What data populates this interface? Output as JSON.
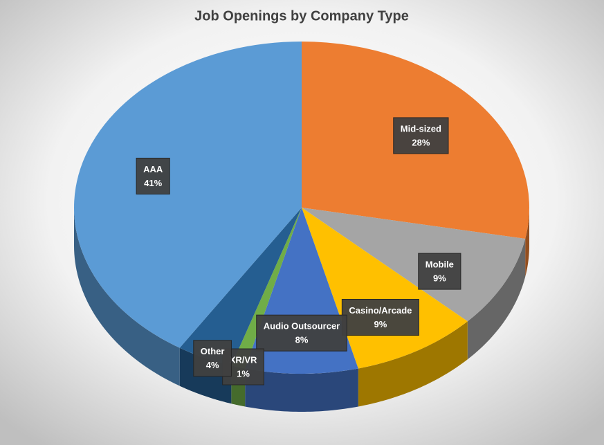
{
  "chart_data": {
    "type": "pie",
    "title": "Job Openings by Company Type",
    "categories": [
      "Mid-sized",
      "Mobile",
      "Casino/Arcade",
      "Audio Outsourcer",
      "XR/VR",
      "Other",
      "AAA"
    ],
    "values": [
      28,
      9,
      9,
      8,
      1,
      4,
      41
    ],
    "value_labels": [
      "28%",
      "9%",
      "9%",
      "8%",
      "1%",
      "4%",
      "41%"
    ],
    "colors": [
      "#ed7d31",
      "#a5a5a5",
      "#ffc000",
      "#4472c4",
      "#70ad47",
      "#255e91",
      "#5b9bd5"
    ]
  }
}
